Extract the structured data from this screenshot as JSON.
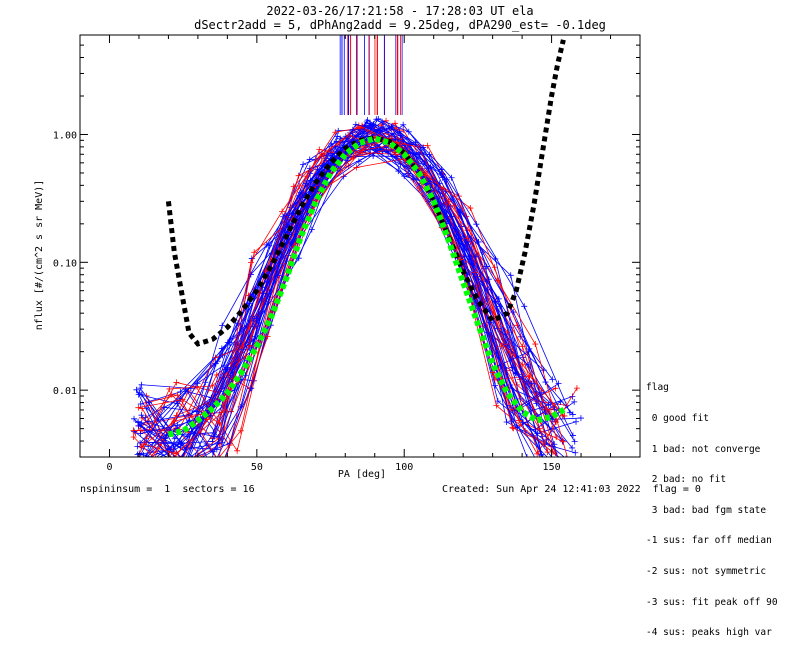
{
  "header": {
    "line1": "2022-03-26/17:21:58 - 17:28:03 UT ela",
    "line2": "dSectr2add = 5, dPhAng2add = 9.25deg, dPA290_est=  -0.1deg"
  },
  "footer": {
    "left": "nspininsum =  1  sectors = 16",
    "right": "Created: Sun Apr 24 12:41:03 2022  flag = 0"
  },
  "legend": {
    "title": "flag",
    "items": [
      " 0 good fit",
      " 1 bad: not converge",
      " 2 bad: no fit",
      " 3 bad: bad fgm state",
      "-1 sus: far off median",
      "-2 sus: not symmetric",
      "-3 sus: fit peak off 90",
      "-4 sus: peaks high var"
    ]
  },
  "colors": {
    "blue": "#0000ff",
    "red": "#ff0000",
    "green": "#00ff00",
    "black": "#000000"
  },
  "chart_data": {
    "type": "line",
    "xlabel": "PA [deg]",
    "ylabel": "nflux [#/(cm^2 s sr MeV)]",
    "xlim": [
      -10,
      180
    ],
    "ylim": [
      0.003,
      6.0
    ],
    "yscale": "log",
    "xticks": [
      0,
      50,
      100,
      150
    ],
    "yticks": [
      0.01,
      0.1,
      1.0
    ],
    "ytick_labels": [
      "0.01",
      "0.10",
      "1.00"
    ],
    "series": [
      {
        "style": "green-dotted",
        "x": [
          20,
          25,
          30,
          35,
          40,
          45,
          50,
          55,
          60,
          65,
          70,
          75,
          80,
          85,
          90,
          95,
          100,
          105,
          110,
          115,
          120,
          125,
          130,
          135,
          140,
          145,
          150,
          155
        ],
        "y": [
          0.0045,
          0.0048,
          0.0058,
          0.0072,
          0.0095,
          0.014,
          0.022,
          0.038,
          0.075,
          0.16,
          0.3,
          0.5,
          0.7,
          0.86,
          0.93,
          0.86,
          0.7,
          0.5,
          0.3,
          0.15,
          0.07,
          0.033,
          0.016,
          0.0095,
          0.0068,
          0.0058,
          0.0062,
          0.0072
        ]
      },
      {
        "style": "black-dashed",
        "x": [
          20,
          22,
          25,
          27,
          30,
          35,
          40,
          45,
          50,
          55,
          60,
          65,
          70,
          75,
          80,
          85,
          90,
          95,
          100,
          105,
          110,
          115,
          120,
          125,
          130,
          135,
          138,
          141,
          144,
          147,
          150,
          152,
          154
        ],
        "y": [
          0.3,
          0.12,
          0.05,
          0.028,
          0.023,
          0.025,
          0.031,
          0.042,
          0.06,
          0.095,
          0.16,
          0.27,
          0.42,
          0.6,
          0.78,
          0.9,
          0.94,
          0.88,
          0.72,
          0.5,
          0.3,
          0.16,
          0.085,
          0.05,
          0.035,
          0.04,
          0.06,
          0.12,
          0.28,
          0.75,
          2.0,
          3.5,
          5.5
        ]
      }
    ]
  }
}
